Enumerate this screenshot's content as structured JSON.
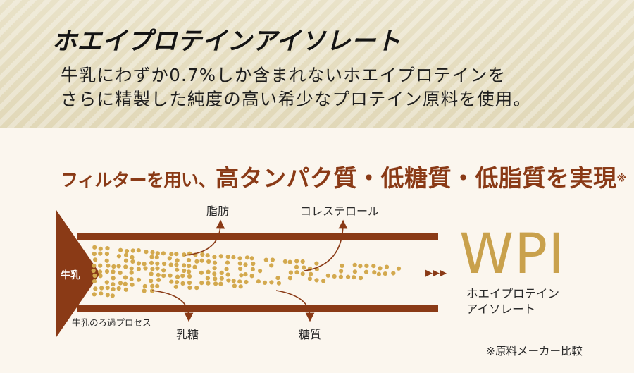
{
  "header": {
    "title": "ホエイプロテインアイソレート",
    "desc_line1": "牛乳にわずか0.7%しか含まれないホエイプロテインを",
    "desc_line2": "さらに精製した純度の高い希少なプロテイン原料を使用。"
  },
  "headline": {
    "part1": "フィルターを用い、",
    "part2": "高タンパク質・低糖質・低脂質を実現",
    "note": "※"
  },
  "diagram": {
    "input_label": "牛乳",
    "process_label": "牛乳のろ過プロセス",
    "removed_top": [
      "脂肪",
      "コレステロール"
    ],
    "removed_bottom": [
      "乳糖",
      "糖質"
    ],
    "output_arrows": "▶▶▶",
    "colors": {
      "pipe": "#8a3a16",
      "particle": "#d3a94e",
      "wpi": "#c9a14c"
    }
  },
  "wpi": {
    "name": "WPI",
    "sub_line1": "ホエイプロテイン",
    "sub_line2": "アイソレート"
  },
  "footnote": "※原料メーカー比較"
}
